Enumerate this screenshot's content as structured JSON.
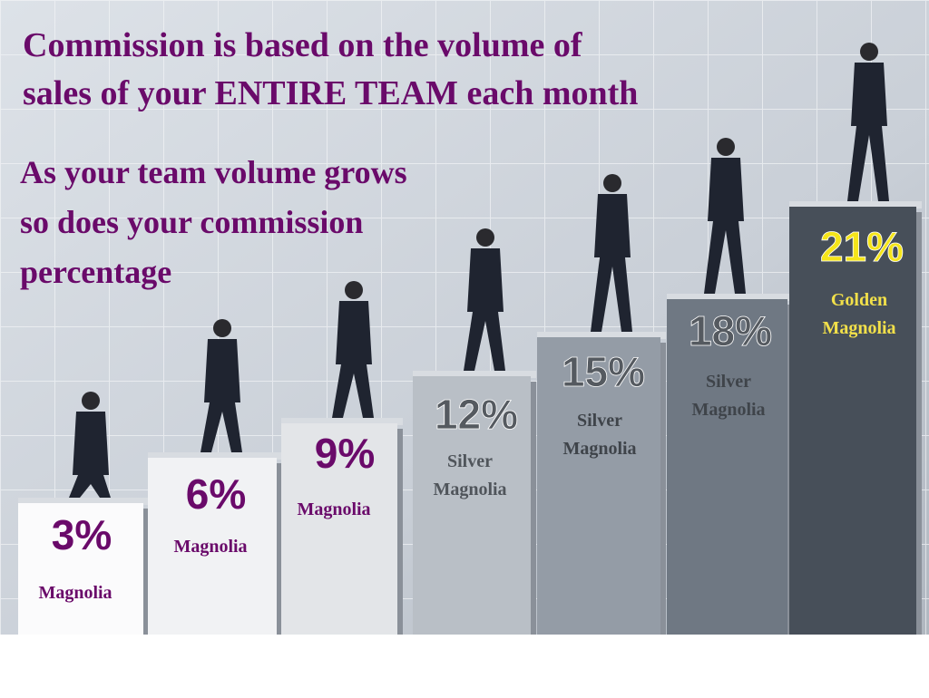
{
  "title": {
    "lines": [
      "Commission is based on the volume of",
      "sales of your ENTIRE TEAM each month"
    ]
  },
  "subtitle": {
    "lines": [
      "As your team volume grows",
      "so does your commission",
      "percentage"
    ]
  },
  "steps": [
    {
      "percent": "3%",
      "level": [
        "Magnolia"
      ]
    },
    {
      "percent": "6%",
      "level": [
        "Magnolia"
      ]
    },
    {
      "percent": "9%",
      "level": [
        "Magnolia"
      ]
    },
    {
      "percent": "12%",
      "level": [
        "Silver",
        "Magnolia"
      ]
    },
    {
      "percent": "15%",
      "level": [
        "Silver",
        "Magnolia"
      ]
    },
    {
      "percent": "18%",
      "level": [
        "Silver",
        "Magnolia"
      ]
    },
    {
      "percent": "21%",
      "level": [
        "Golden",
        "Magnolia"
      ]
    }
  ]
}
